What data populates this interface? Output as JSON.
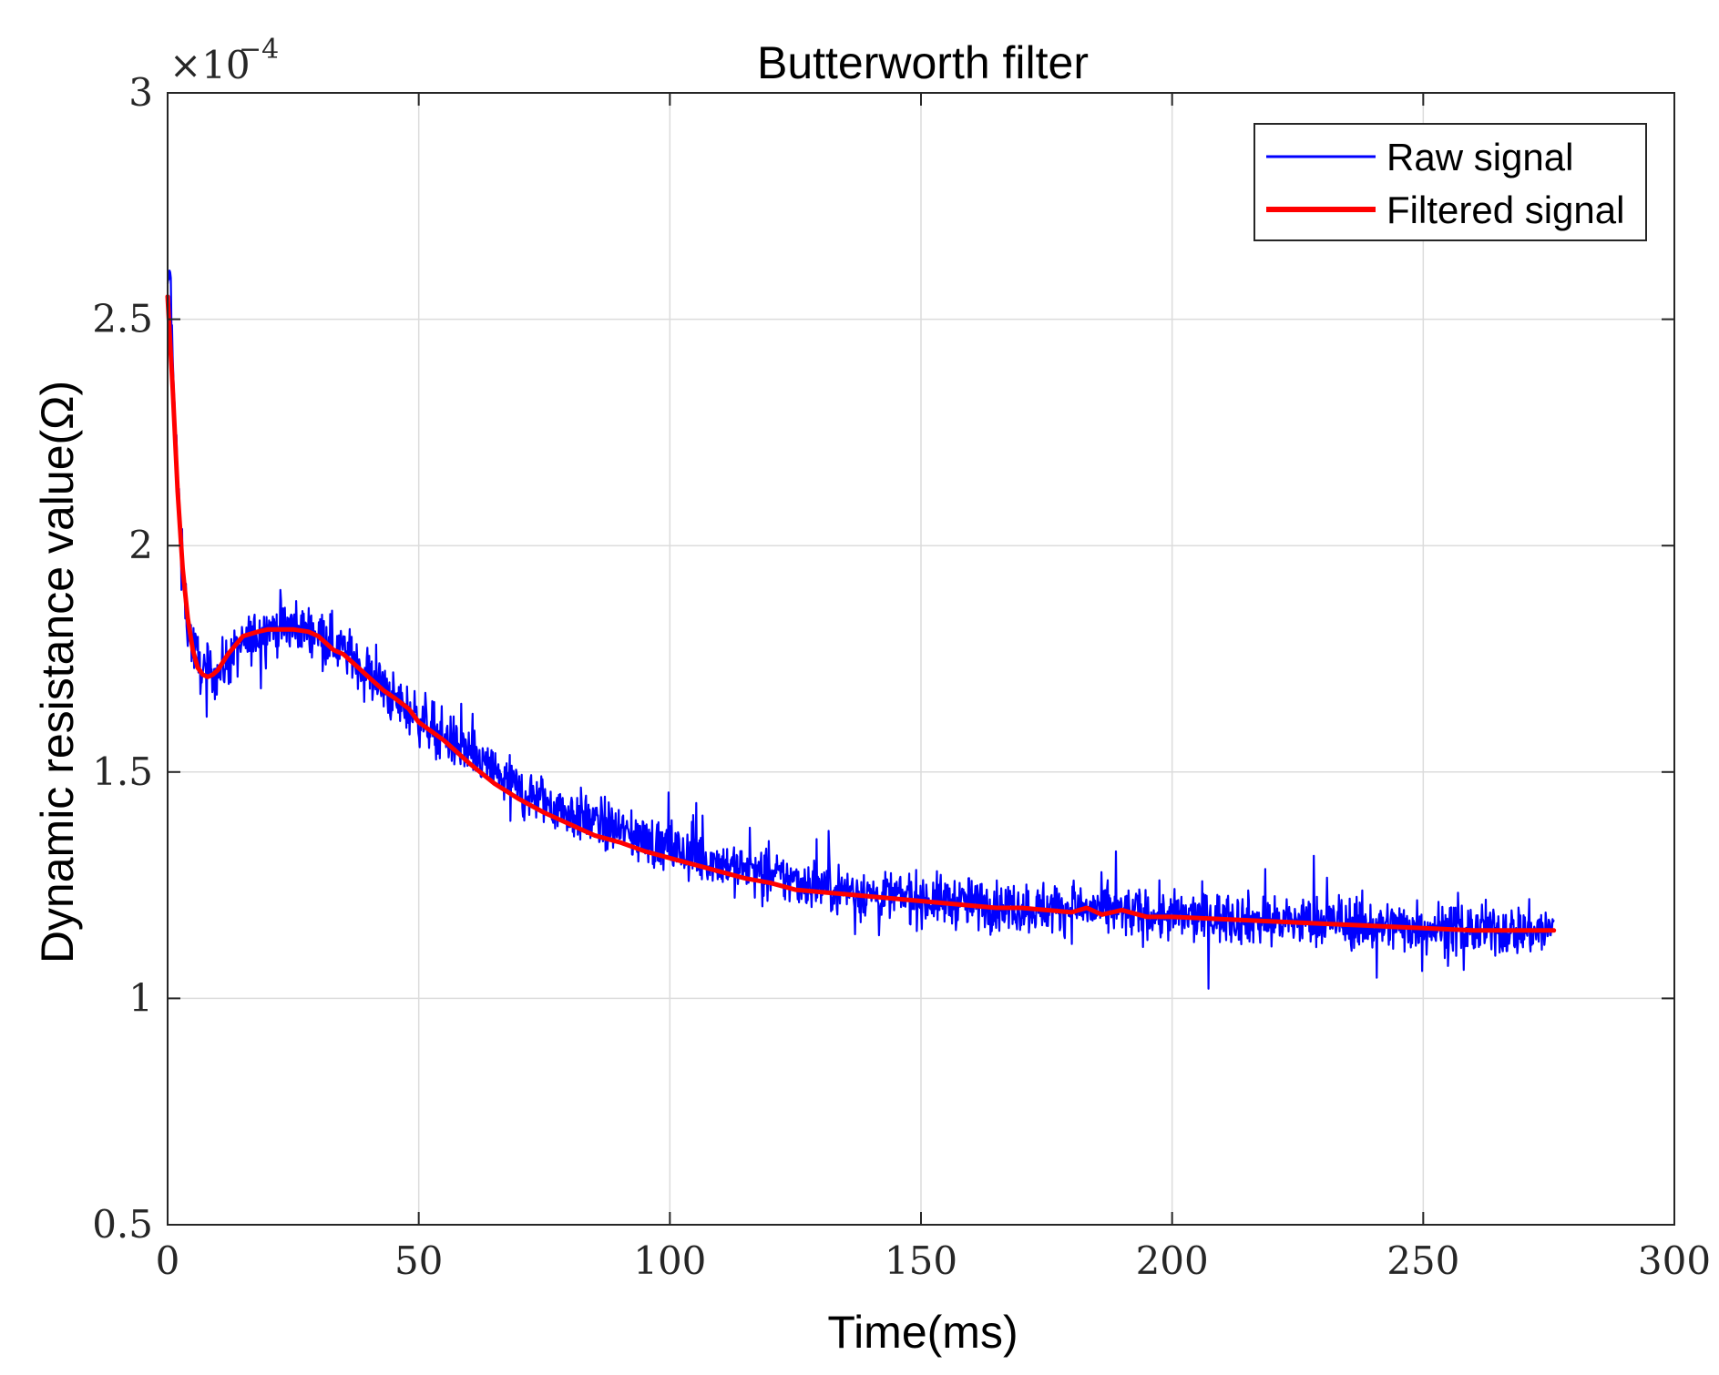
{
  "chart_data": {
    "type": "line",
    "title": "Butterworth filter",
    "xlabel": "Time(ms)",
    "ylabel": "Dynamic resistance value(Ω)",
    "exponent_label": "×10",
    "exponent_power": "−4",
    "xlim": [
      0,
      300
    ],
    "ylim": [
      0.5,
      3
    ],
    "xticks": [
      0,
      50,
      100,
      150,
      200,
      250,
      300
    ],
    "yticks": [
      0.5,
      1,
      1.5,
      2,
      2.5,
      3
    ],
    "xtick_labels": [
      "0",
      "50",
      "100",
      "150",
      "200",
      "250",
      "300"
    ],
    "ytick_labels": [
      "0.5",
      "1",
      "1.5",
      "2",
      "2.5",
      "3"
    ],
    "grid": true,
    "legend_position": "top-right",
    "series": [
      {
        "name": "Raw signal",
        "color": "#0000ff",
        "style": "noisy raw measurement, approx ±0.1 band around filtered trend",
        "x": [
          0,
          0.5,
          1,
          2,
          3,
          4,
          5,
          7,
          10,
          15,
          20,
          25,
          30,
          35,
          40,
          45,
          50,
          60,
          70,
          80,
          90,
          100,
          110,
          120,
          130,
          140,
          150,
          160,
          170,
          180,
          190,
          200,
          210,
          220,
          230,
          240,
          250,
          260,
          270,
          276
        ],
        "values": [
          2.55,
          2.62,
          2.4,
          2.15,
          1.95,
          1.82,
          1.78,
          1.72,
          1.72,
          1.78,
          1.82,
          1.82,
          1.81,
          1.77,
          1.72,
          1.66,
          1.62,
          1.54,
          1.46,
          1.41,
          1.37,
          1.33,
          1.3,
          1.27,
          1.25,
          1.23,
          1.22,
          1.21,
          1.2,
          1.2,
          1.19,
          1.18,
          1.18,
          1.17,
          1.17,
          1.16,
          1.16,
          1.15,
          1.15,
          1.15
        ]
      },
      {
        "name": "Filtered signal",
        "color": "#ff0000",
        "x": [
          0,
          1,
          2,
          3,
          4,
          5,
          6,
          7,
          8,
          9,
          10,
          12,
          15,
          18,
          20,
          22,
          25,
          28,
          30,
          33,
          35,
          38,
          40,
          43,
          45,
          48,
          50,
          55,
          60,
          65,
          70,
          75,
          80,
          85,
          90,
          95,
          100,
          105,
          110,
          115,
          120,
          125,
          130,
          135,
          140,
          145,
          150,
          155,
          160,
          165,
          170,
          175,
          180,
          183,
          186,
          190,
          195,
          200,
          210,
          220,
          230,
          240,
          250,
          260,
          270,
          276
        ],
        "values": [
          2.55,
          2.35,
          2.12,
          1.95,
          1.84,
          1.77,
          1.73,
          1.715,
          1.71,
          1.715,
          1.725,
          1.76,
          1.8,
          1.81,
          1.815,
          1.815,
          1.815,
          1.81,
          1.8,
          1.77,
          1.76,
          1.73,
          1.71,
          1.68,
          1.665,
          1.64,
          1.61,
          1.57,
          1.52,
          1.475,
          1.44,
          1.41,
          1.385,
          1.36,
          1.345,
          1.325,
          1.31,
          1.295,
          1.28,
          1.265,
          1.255,
          1.24,
          1.235,
          1.23,
          1.225,
          1.22,
          1.215,
          1.21,
          1.205,
          1.2,
          1.2,
          1.195,
          1.19,
          1.2,
          1.185,
          1.195,
          1.18,
          1.18,
          1.175,
          1.17,
          1.165,
          1.16,
          1.155,
          1.15,
          1.15,
          1.15
        ]
      }
    ]
  }
}
